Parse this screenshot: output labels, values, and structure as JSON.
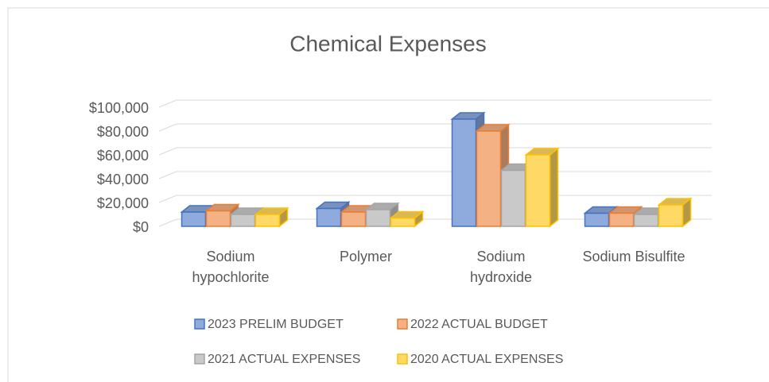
{
  "chart_data": {
    "type": "bar3d",
    "title": "Chemical Expenses",
    "categories": [
      "Sodium hypochlorite",
      "Polymer",
      "Sodium hydroxide",
      "Sodium Bisulfite"
    ],
    "series": [
      {
        "name": "2023 PRELIM BUDGET",
        "color": "#8faadc",
        "edge": "#4472c4",
        "values": [
          12000,
          15000,
          90000,
          11000
        ]
      },
      {
        "name": "2022 ACTUAL BUDGET",
        "color": "#f4b183",
        "edge": "#ed7d31",
        "values": [
          13000,
          12000,
          80000,
          11000
        ]
      },
      {
        "name": "2021 ACTUAL EXPENSES",
        "color": "#c9c9c9",
        "edge": "#a5a5a5",
        "values": [
          10000,
          14000,
          47000,
          10000
        ]
      },
      {
        "name": "2020 ACTUAL EXPENSES",
        "color": "#ffd966",
        "edge": "#ffc000",
        "values": [
          10000,
          7000,
          60000,
          18000
        ]
      }
    ],
    "ylim": [
      0,
      100000
    ],
    "yticks": [
      {
        "value": 0,
        "label": "$0"
      },
      {
        "value": 20000,
        "label": "$20,000"
      },
      {
        "value": 40000,
        "label": "$40,000"
      },
      {
        "value": 60000,
        "label": "$60,000"
      },
      {
        "value": 80000,
        "label": "$80,000"
      },
      {
        "value": 100000,
        "label": "$100,000"
      }
    ],
    "grid": true
  }
}
